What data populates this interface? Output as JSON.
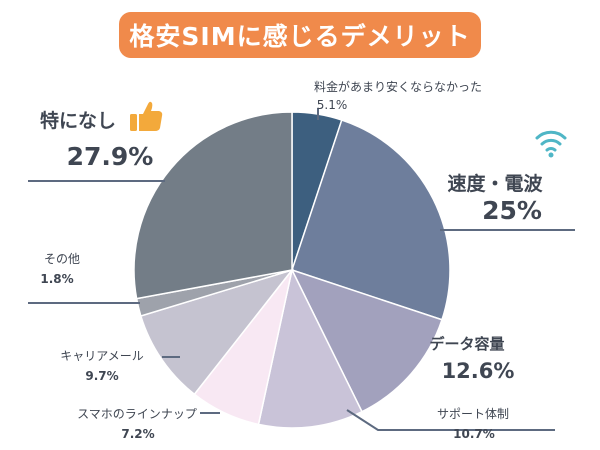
{
  "colors": {
    "title_bg": "#f08a4b",
    "label_text": "#3f4652",
    "leader_line": "#5d6a80",
    "thumb": "#f3a93b",
    "wifi": "#4fb6c6"
  },
  "icons": {
    "thumb": "thumbs-up-icon",
    "wifi": "wifi-icon"
  },
  "chart_data": {
    "type": "pie",
    "title": "格安SIMに感じるデメリット",
    "start_angle_deg": 0,
    "direction": "clockwise",
    "slices": [
      {
        "label": "料金があまり安くならなかった",
        "value": 5.1,
        "value_text": "5.1%",
        "color": "#3d5f7f"
      },
      {
        "label": "速度・電波",
        "value": 25,
        "value_text": "25%",
        "color": "#6e7e9c"
      },
      {
        "label": "データ容量",
        "value": 12.6,
        "value_text": "12.6%",
        "color": "#a2a1bd"
      },
      {
        "label": "サポート体制",
        "value": 10.7,
        "value_text": "10.7%",
        "color": "#c9c3d8"
      },
      {
        "label": "スマホのラインナップ",
        "value": 7.2,
        "value_text": "7.2%",
        "color": "#f8e8f3"
      },
      {
        "label": "キャリアメール",
        "value": 9.7,
        "value_text": "9.7%",
        "color": "#c5c3d0"
      },
      {
        "label": "その他",
        "value": 1.8,
        "value_text": "1.8%",
        "color": "#9ea2ab"
      },
      {
        "label": "特になし",
        "value": 27.9,
        "value_text": "27.9%",
        "color": "#737d87"
      }
    ]
  }
}
